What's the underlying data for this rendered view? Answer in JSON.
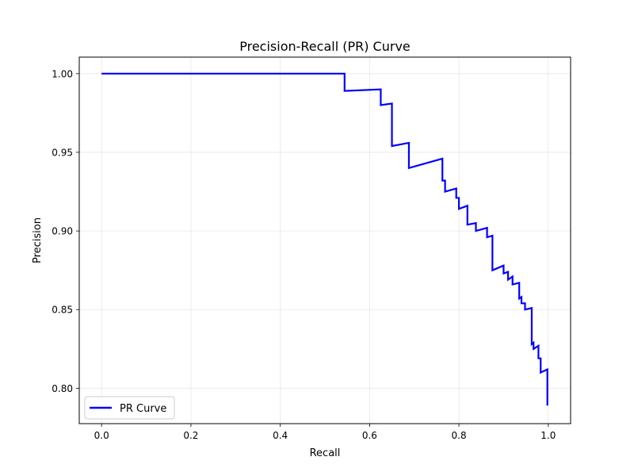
{
  "chart_data": {
    "type": "line",
    "title": "Precision-Recall (PR) Curve",
    "xlabel": "Recall",
    "ylabel": "Precision",
    "xlim": [
      -0.05,
      1.05
    ],
    "ylim": [
      0.7775,
      1.0105
    ],
    "xticks": [
      0.0,
      0.2,
      0.4,
      0.6,
      0.8,
      1.0
    ],
    "xtick_labels": [
      "0.0",
      "0.2",
      "0.4",
      "0.6",
      "0.8",
      "1.0"
    ],
    "yticks": [
      0.8,
      0.85,
      0.9,
      0.95,
      1.0
    ],
    "ytick_labels": [
      "0.80",
      "0.85",
      "0.90",
      "0.95",
      "1.00"
    ],
    "grid": true,
    "legend": {
      "position": "lower-left",
      "entries": [
        "PR Curve"
      ]
    },
    "series": [
      {
        "name": "PR Curve",
        "color": "#0000ff",
        "points": [
          [
            0.0,
            1.0
          ],
          [
            0.544,
            1.0
          ],
          [
            0.544,
            0.989
          ],
          [
            0.625,
            0.99
          ],
          [
            0.625,
            0.98
          ],
          [
            0.65,
            0.981
          ],
          [
            0.65,
            0.954
          ],
          [
            0.688,
            0.956
          ],
          [
            0.688,
            0.94
          ],
          [
            0.763,
            0.946
          ],
          [
            0.763,
            0.932
          ],
          [
            0.769,
            0.932
          ],
          [
            0.769,
            0.925
          ],
          [
            0.794,
            0.927
          ],
          [
            0.794,
            0.921
          ],
          [
            0.8,
            0.921
          ],
          [
            0.8,
            0.914
          ],
          [
            0.819,
            0.916
          ],
          [
            0.819,
            0.904
          ],
          [
            0.838,
            0.905
          ],
          [
            0.838,
            0.9
          ],
          [
            0.863,
            0.902
          ],
          [
            0.863,
            0.896
          ],
          [
            0.875,
            0.897
          ],
          [
            0.875,
            0.875
          ],
          [
            0.9,
            0.878
          ],
          [
            0.9,
            0.873
          ],
          [
            0.91,
            0.874
          ],
          [
            0.91,
            0.869
          ],
          [
            0.92,
            0.871
          ],
          [
            0.92,
            0.866
          ],
          [
            0.935,
            0.867
          ],
          [
            0.935,
            0.857
          ],
          [
            0.94,
            0.858
          ],
          [
            0.94,
            0.854
          ],
          [
            0.948,
            0.854
          ],
          [
            0.948,
            0.85
          ],
          [
            0.963,
            0.851
          ],
          [
            0.963,
            0.828
          ],
          [
            0.967,
            0.829
          ],
          [
            0.967,
            0.825
          ],
          [
            0.978,
            0.827
          ],
          [
            0.978,
            0.819
          ],
          [
            0.983,
            0.819
          ],
          [
            0.983,
            0.81
          ],
          [
            0.998,
            0.812
          ],
          [
            0.998,
            0.789
          ]
        ]
      }
    ]
  }
}
